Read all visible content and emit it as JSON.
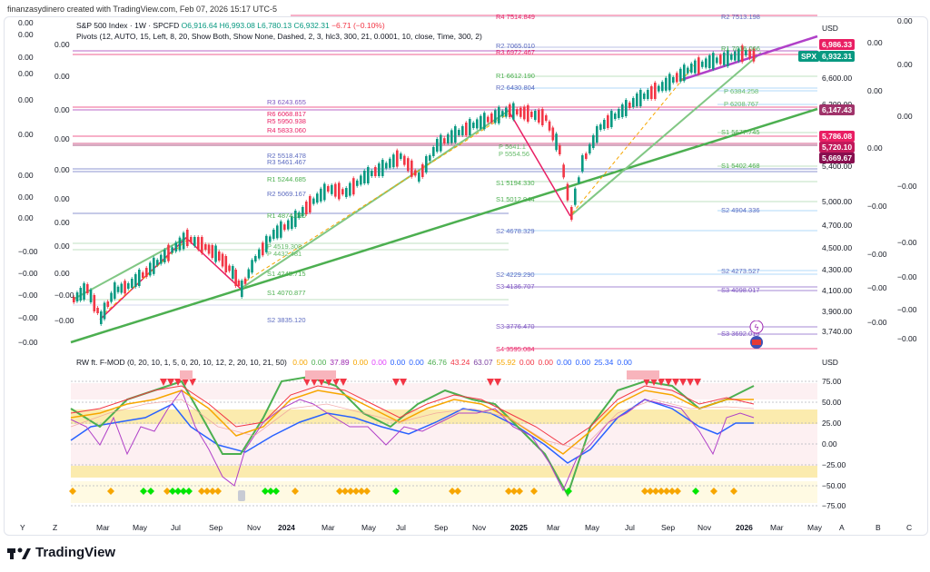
{
  "header": {
    "creator": "finanzasydinero created with TradingView.com, Feb 07, 2026 15:17 UTC-5"
  },
  "legend": {
    "symbol": "S&P 500 Index · 1W · SPCFD",
    "open": "O6,916.64",
    "high": "H6,993.08",
    "low": "L6,780.13",
    "close": "C6,932.31",
    "change": "−6.71 (−0.10%)",
    "pivots": "Pivots (12, AUTO, 15, Left, 8, 20, Show Both, Show None, Dashed, 2, 3, hlc3, 300, 21, 0.0001, 10, close, Time, 300, 2)"
  },
  "currency": "USD",
  "price_axis": [
    "6,600.00",
    "6,200.00",
    "5,400.00",
    "5,000.00",
    "4,700.00",
    "4,500.00",
    "4,300.00",
    "4,100.00",
    "3,900.00",
    "3,740.00"
  ],
  "price_tags": {
    "t1": "6,986.33",
    "spx_label": "SPX",
    "spx_value": "6,932.31",
    "t2": "6,147.43",
    "t3": "5,786.08",
    "t4": "5,720.10",
    "t5": "5,669.67"
  },
  "left_scale": [
    "0.00",
    "0.00",
    "0.00",
    "0.00",
    "0.00",
    "0.00",
    "0.00",
    "0.00",
    "0.00",
    "−0.00",
    "−0.00",
    "−0.00",
    "−0.00",
    "−0.00",
    "−0.00",
    "−0.00",
    "−0.00"
  ],
  "right_scale": [
    "0.00",
    "0.00",
    "0.00",
    "0.00",
    "0.00",
    "0.00",
    "−0.00",
    "−0.00",
    "−0.00",
    "−0.00",
    "−0.00",
    "−0.00",
    "−0.00",
    "−0.00",
    "−0.00",
    "−0.00"
  ],
  "pivot_labels": [
    {
      "t": "R3  6243.655"
    },
    {
      "t": "R6  6068.817"
    },
    {
      "t": "R5  5950.938"
    },
    {
      "t": "R4  5833.060"
    },
    {
      "t": "R2  5518.478"
    },
    {
      "t": "R3  5461.467"
    },
    {
      "t": "R1  5244.685"
    },
    {
      "t": "R2  5069.167"
    },
    {
      "t": "R1  4874.090"
    },
    {
      "t": "P  4519.308"
    },
    {
      "t": "P  4432.481"
    },
    {
      "t": "S1  4245.715"
    },
    {
      "t": "S1  4070.877"
    },
    {
      "t": "S2  3835.120"
    },
    {
      "t": "R2  7065.010"
    },
    {
      "t": "R3  6972.467"
    },
    {
      "t": "R1  6612.190"
    },
    {
      "t": "R2  6430.804"
    },
    {
      "t": "P  5641.1"
    },
    {
      "t": "P  5554.56"
    },
    {
      "t": "S1  5194.330"
    },
    {
      "t": "S1  5012.944"
    },
    {
      "t": "S2  4678.329"
    },
    {
      "t": "S2  4229.290"
    },
    {
      "t": "S3  4136.707"
    },
    {
      "t": "S3  3776.470"
    },
    {
      "t": "S4  3595.084"
    },
    {
      "t": "R4  7514.849"
    },
    {
      "t": "R2  7513.198"
    },
    {
      "t": "R1  7016.066"
    },
    {
      "t": "P  6384.258"
    },
    {
      "t": "P  6208.767"
    },
    {
      "t": "S1  5677.745"
    },
    {
      "t": "S1  5402.468"
    },
    {
      "t": "S2  4904.336"
    },
    {
      "t": "S2  4273.527"
    },
    {
      "t": "S3  4098.017"
    },
    {
      "t": "S3  3692.015"
    }
  ],
  "indicator": {
    "name": "RW ft. F-MOD (0, 20, 10, 1, 5, 0, 20, 10, 12, 2, 20, 10, 21, 50)",
    "values": [
      {
        "v": "0.00",
        "c": "#f7a600"
      },
      {
        "v": "0.00",
        "c": "#4caf50"
      },
      {
        "v": "37.89",
        "c": "#9c27b0"
      },
      {
        "v": "0.00",
        "c": "#f7a600"
      },
      {
        "v": "0.00",
        "c": "#e040fb"
      },
      {
        "v": "0.00",
        "c": "#2962ff"
      },
      {
        "v": "0.00",
        "c": "#2962ff"
      },
      {
        "v": "46.76",
        "c": "#4caf50"
      },
      {
        "v": "43.24",
        "c": "#f23645"
      },
      {
        "v": "63.07",
        "c": "#7b3fa1"
      },
      {
        "v": "55.92",
        "c": "#f7a600"
      },
      {
        "v": "0.00",
        "c": "#f23645"
      },
      {
        "v": "0.00",
        "c": "#f23645"
      },
      {
        "v": "0.00",
        "c": "#2962ff"
      },
      {
        "v": "0.00",
        "c": "#2962ff"
      },
      {
        "v": "25.34",
        "c": "#2962ff"
      },
      {
        "v": "0.00",
        "c": "#2962ff"
      }
    ],
    "axis": [
      "75.00",
      "50.00",
      "25.00",
      "0.00",
      "−25.00",
      "−50.00",
      "−75.00"
    ],
    "currency": "USD"
  },
  "x_axis": [
    {
      "t": "Y"
    },
    {
      "t": "Z"
    },
    {
      "t": "Mar"
    },
    {
      "t": "May"
    },
    {
      "t": "Jul"
    },
    {
      "t": "Sep"
    },
    {
      "t": "Nov"
    },
    {
      "t": "2024",
      "b": true
    },
    {
      "t": "Mar"
    },
    {
      "t": "May"
    },
    {
      "t": "Jul"
    },
    {
      "t": "Sep"
    },
    {
      "t": "Nov"
    },
    {
      "t": "2025",
      "b": true
    },
    {
      "t": "Mar"
    },
    {
      "t": "May"
    },
    {
      "t": "Jul"
    },
    {
      "t": "Sep"
    },
    {
      "t": "Nov"
    },
    {
      "t": "2026",
      "b": true
    },
    {
      "t": "Mar"
    },
    {
      "t": "May"
    },
    {
      "t": "A"
    },
    {
      "t": "B"
    },
    {
      "t": "C"
    }
  ],
  "brand": "TradingView",
  "colors": {
    "up": "#089981",
    "down": "#f23645",
    "trend": "#4caf50",
    "purple": "#b040c8",
    "pink": "#e91e63"
  }
}
